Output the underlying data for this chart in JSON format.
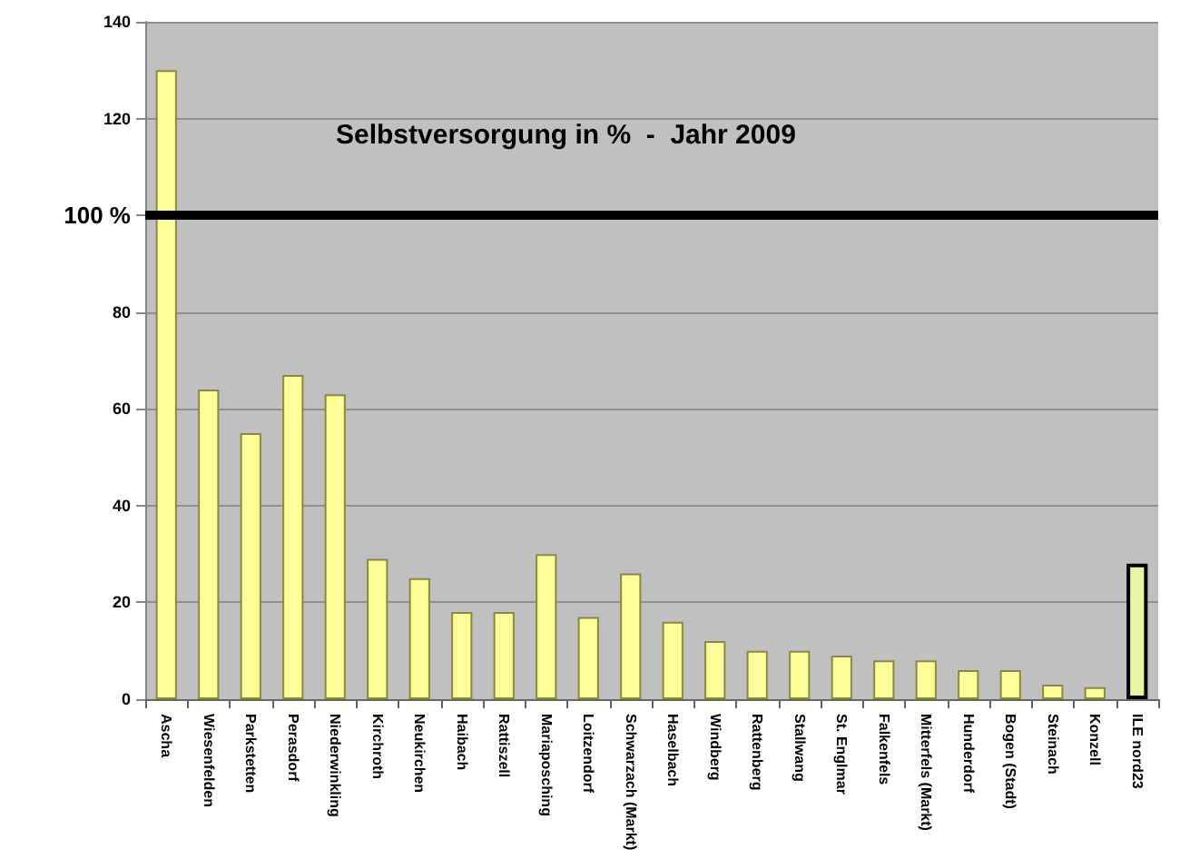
{
  "chart_data": {
    "type": "bar",
    "title": "Selbstversorgung in %  -  Jahr 2009",
    "categories": [
      "Ascha",
      "Wiesenfelden",
      "Parkstetten",
      "Perasdorf",
      "Niederwinkling",
      "Kirchroth",
      "Neukirchen",
      "Haibach",
      "Rattiszell",
      "Mariaposching",
      "Loitzendorf",
      "Schwarzach (Markt)",
      "Haselbach",
      "Windberg",
      "Rattenberg",
      "Stallwang",
      "St. Englmar",
      "Falkenfels",
      "Mitterfels (Markt)",
      "Hunderdorf",
      "Bogen (Stadt)",
      "Steinach",
      "Konzell",
      "ILE nord23"
    ],
    "values": [
      130,
      64,
      55,
      67,
      63,
      29,
      25,
      18,
      18,
      30,
      17,
      26,
      16,
      12,
      10,
      10,
      9,
      8,
      8,
      6,
      6,
      3,
      2.5,
      28
    ],
    "colors": [
      "#ffff99",
      "#ffff99",
      "#ffff99",
      "#ffff99",
      "#ffff99",
      "#ffff99",
      "#ffff99",
      "#ffff99",
      "#ffff99",
      "#ffff99",
      "#ffff99",
      "#ffff99",
      "#ffff99",
      "#ffff99",
      "#ffff99",
      "#ffff99",
      "#ffff99",
      "#ffff99",
      "#ffff99",
      "#ffff99",
      "#ffff99",
      "#ffff99",
      "#ffff99",
      "#e8f5a3"
    ],
    "ylim": [
      0,
      140
    ],
    "yticks": [
      0,
      20,
      40,
      60,
      80,
      {
        "value": 100,
        "label": null
      },
      120,
      140
    ],
    "grid": "y",
    "ref_lines": [
      {
        "axis": "y",
        "value": 100,
        "label": "100 %",
        "color": "#000000"
      }
    ]
  }
}
